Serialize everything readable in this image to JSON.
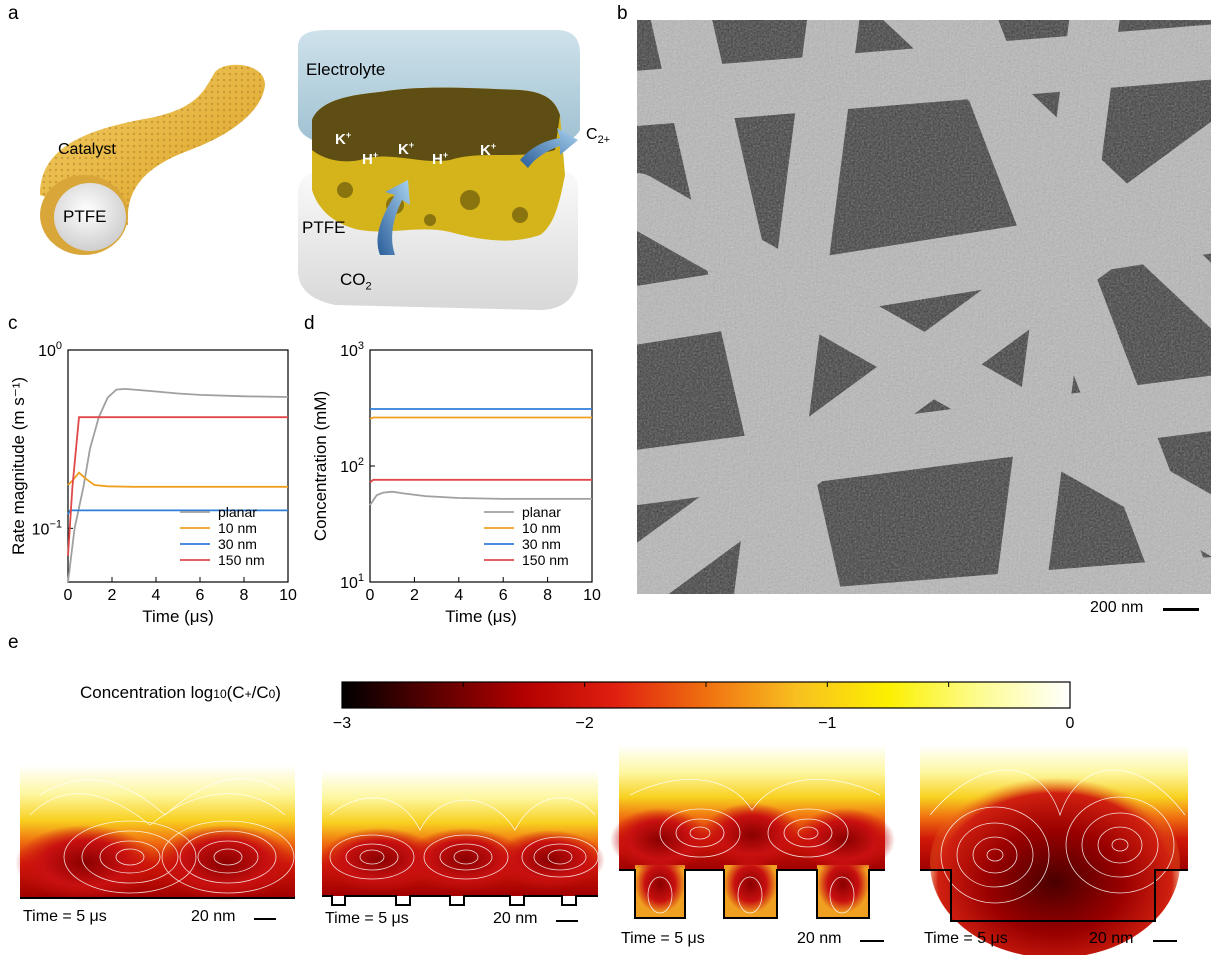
{
  "panel_labels": {
    "a": "a",
    "b": "b",
    "c": "c",
    "d": "d",
    "e": "e"
  },
  "panel_a": {
    "left_labels": {
      "catalyst": "Catalyst",
      "ptfe": "PTFE"
    },
    "right_labels": {
      "electrolyte": "Electrolyte",
      "ptfe": "PTFE",
      "co2": "CO",
      "co2_sub": "2",
      "c2_main": "C",
      "c2_sub": "2+",
      "ions": [
        {
          "base": "K",
          "sup": "+"
        },
        {
          "base": "H",
          "sup": "+"
        },
        {
          "base": "K",
          "sup": "+"
        },
        {
          "base": "H",
          "sup": "+"
        },
        {
          "base": "K",
          "sup": "+"
        }
      ]
    }
  },
  "panel_b": {
    "scale_bar": "200 nm"
  },
  "chart_data": [
    {
      "type": "line",
      "xlabel": "Time (μs)",
      "ylabel": "Rate magnitude (m s⁻¹)",
      "yscale": "log",
      "xlim": [
        0,
        10
      ],
      "ylim": [
        0.05,
        1
      ],
      "xticks": [
        "0",
        "2",
        "4",
        "6",
        "8",
        "10"
      ],
      "yticks": [
        {
          "base": "10",
          "exp": "0",
          "value": 1
        },
        {
          "base": "10",
          "exp": "−1",
          "value": 0.1
        }
      ],
      "legend_position": "bottom-right",
      "series": [
        {
          "name": "planar",
          "color": "#a0a0a0",
          "x": [
            0,
            0.3,
            0.7,
            1.0,
            1.4,
            1.8,
            2.2,
            2.6,
            3.0,
            4.0,
            5.0,
            6.0,
            8.0,
            10.0
          ],
          "y": [
            0.05,
            0.1,
            0.17,
            0.28,
            0.42,
            0.54,
            0.6,
            0.605,
            0.6,
            0.585,
            0.57,
            0.56,
            0.55,
            0.545
          ]
        },
        {
          "name": "10 nm",
          "color": "#f0a020",
          "x": [
            0,
            0.2,
            0.5,
            0.8,
            1.2,
            1.8,
            3.0,
            5.0,
            10.0
          ],
          "y": [
            0.175,
            0.185,
            0.205,
            0.19,
            0.175,
            0.172,
            0.171,
            0.171,
            0.171
          ]
        },
        {
          "name": "30 nm",
          "color": "#2e7ed8",
          "x": [
            0,
            0.1,
            10.0
          ],
          "y": [
            0.12,
            0.126,
            0.126
          ]
        },
        {
          "name": "150 nm",
          "color": "#e04848",
          "x": [
            0,
            0.2,
            0.5,
            1.0,
            10.0
          ],
          "y": [
            0.07,
            0.17,
            0.42,
            0.42,
            0.42
          ]
        }
      ]
    },
    {
      "type": "line",
      "xlabel": "Time (μs)",
      "ylabel": "Concentration  (mM)",
      "yscale": "log",
      "xlim": [
        0,
        10
      ],
      "ylim": [
        10,
        1000
      ],
      "xticks": [
        "0",
        "2",
        "4",
        "6",
        "8",
        "10"
      ],
      "yticks": [
        {
          "base": "10",
          "exp": "3",
          "value": 1000
        },
        {
          "base": "10",
          "exp": "2",
          "value": 100
        },
        {
          "base": "10",
          "exp": "1",
          "value": 10
        }
      ],
      "legend_position": "bottom-right",
      "series": [
        {
          "name": "planar",
          "color": "#a0a0a0",
          "x": [
            0,
            0.3,
            0.6,
            1.0,
            1.5,
            2.5,
            4.0,
            6.0,
            8.0,
            10.0
          ],
          "y": [
            46,
            56,
            59,
            60,
            58,
            55,
            53,
            52,
            52,
            52
          ]
        },
        {
          "name": "10 nm",
          "color": "#f0a020",
          "x": [
            0,
            0.15,
            10.0
          ],
          "y": [
            255,
            262,
            262
          ]
        },
        {
          "name": "30 nm",
          "color": "#2e7ed8",
          "x": [
            0,
            10.0
          ],
          "y": [
            310,
            310
          ]
        },
        {
          "name": "150 nm",
          "color": "#e04848",
          "x": [
            0,
            0.15,
            10.0
          ],
          "y": [
            72,
            76,
            76
          ]
        }
      ]
    }
  ],
  "panel_e": {
    "colorbar": {
      "label_pre": "Concentration log",
      "label_sub": "10",
      "label_mid": "(C",
      "label_sub2": "+",
      "label_mid2": "/C",
      "label_sub3": "0",
      "label_post": ")",
      "ticks": [
        "−3",
        "−2",
        "−1",
        "0"
      ],
      "tick_values": [
        -3,
        -2,
        -1,
        0
      ],
      "colors": [
        "#000000",
        "#5a0000",
        "#b30000",
        "#e02010",
        "#f07010",
        "#f8c020",
        "#fcf000",
        "#fdfc90",
        "#ffffff"
      ]
    },
    "maps": [
      {
        "time": "Time = 5 μs",
        "scale": "20 nm"
      },
      {
        "time": "Time = 5 μs",
        "scale": "20 nm"
      },
      {
        "time": "Time = 5 μs",
        "scale": "20 nm"
      },
      {
        "time": "Time = 5 μs",
        "scale": "20 nm"
      }
    ]
  }
}
